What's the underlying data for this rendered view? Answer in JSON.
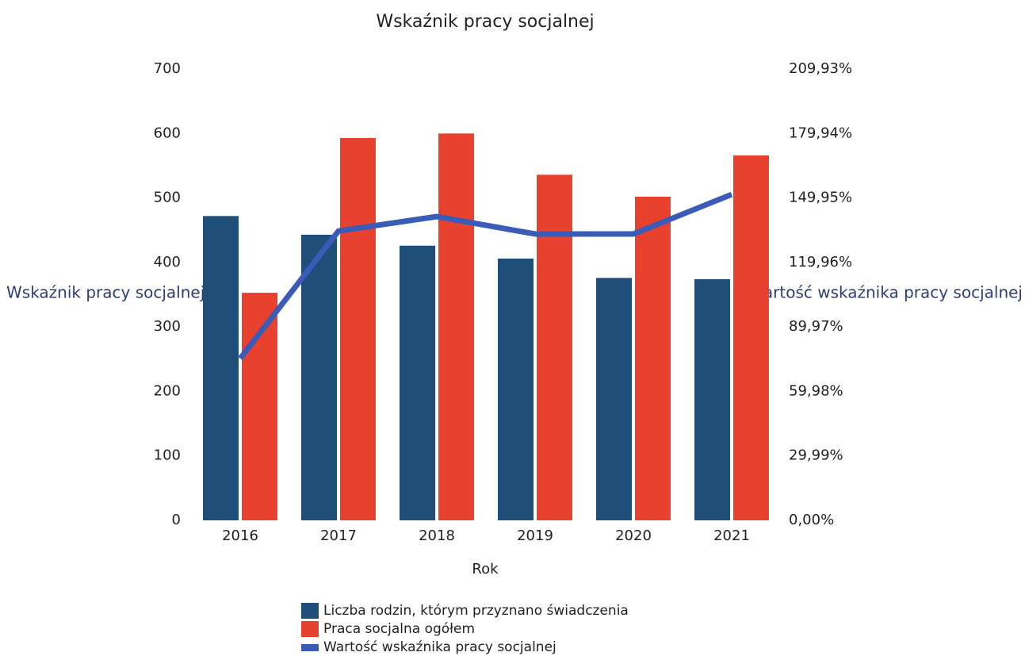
{
  "chart_data": {
    "type": "bar",
    "title": "Wskaźnik pracy socjalnej",
    "x_label": "Rok",
    "y_label": "Wskaźnik pracy socjalnej",
    "y2_label": "Wartość wskaźnika pracy socjalnej",
    "categories": [
      "2016",
      "2017",
      "2018",
      "2019",
      "2020",
      "2021"
    ],
    "series": [
      {
        "name": "Liczba rodzin, którym przyznano świadczenia",
        "color": "#1f4e79",
        "values": [
          472,
          443,
          426,
          406,
          376,
          374
        ]
      },
      {
        "name": "Praca socjalna ogółem",
        "color": "#e8422f",
        "values": [
          353,
          593,
          600,
          536,
          502,
          566
        ]
      },
      {
        "name": "Wartość wskaźnika pracy socjalnej",
        "color": "#3a5cb8",
        "type": "line",
        "axis": "y2",
        "values": [
          75.3,
          134.6,
          141.3,
          133.2,
          133.2,
          151.6
        ]
      }
    ],
    "ylim": [
      0,
      700
    ],
    "yticks": [
      0,
      100,
      200,
      300,
      400,
      500,
      600,
      700
    ],
    "y2lim": [
      0,
      209.93
    ],
    "y2ticks": [
      {
        "value": 0,
        "label": "0,00%"
      },
      {
        "value": 29.99,
        "label": "29,99%"
      },
      {
        "value": 59.98,
        "label": "59,98%"
      },
      {
        "value": 89.97,
        "label": "89,97%"
      },
      {
        "value": 119.96,
        "label": "119,96%"
      },
      {
        "value": 149.95,
        "label": "149,95%"
      },
      {
        "value": 179.94,
        "label": "179,94%"
      },
      {
        "value": 209.93,
        "label": "209,93%"
      }
    ],
    "legend": "bottom",
    "grid": false
  }
}
